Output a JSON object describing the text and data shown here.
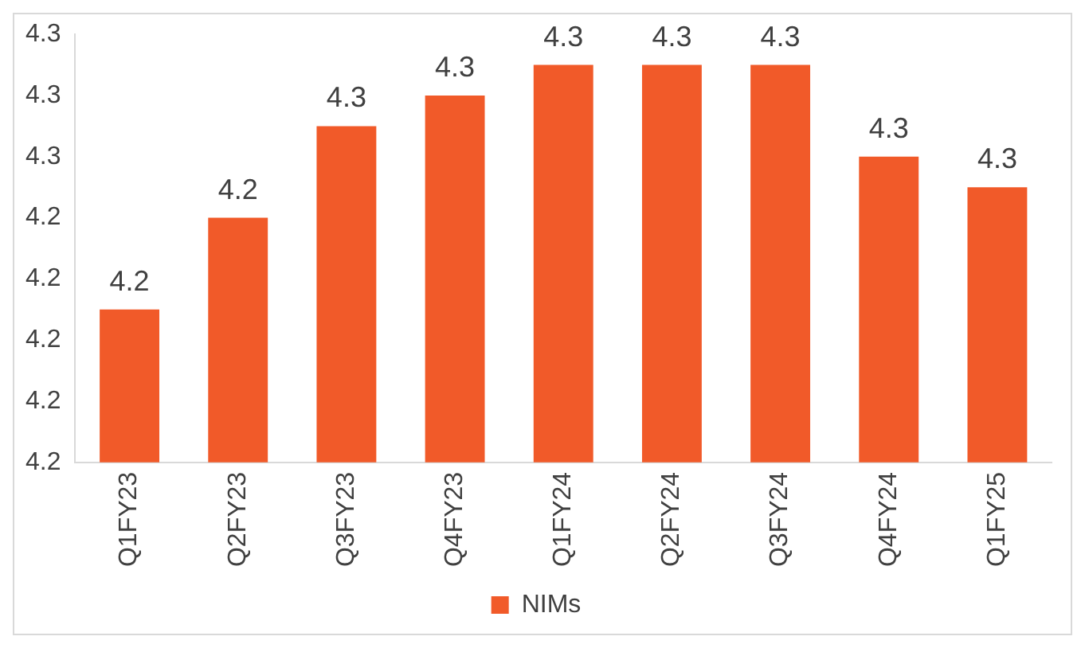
{
  "chart_data": {
    "type": "bar",
    "categories": [
      "Q1FY23",
      "Q2FY23",
      "Q3FY23",
      "Q4FY23",
      "Q1FY24",
      "Q2FY24",
      "Q3FY24",
      "Q4FY24",
      "Q1FY25"
    ],
    "series": [
      {
        "name": "NIMs",
        "color": "#f15a29",
        "values": [
          4.21,
          4.24,
          4.27,
          4.28,
          4.29,
          4.29,
          4.29,
          4.26,
          4.25
        ],
        "value_labels": [
          "4.2",
          "4.2",
          "4.3",
          "4.3",
          "4.3",
          "4.3",
          "4.3",
          "4.3",
          "4.3"
        ]
      }
    ],
    "ylim": [
      4.16,
      4.3
    ],
    "yticks": [
      {
        "value": 4.16,
        "label": "4.2"
      },
      {
        "value": 4.18,
        "label": "4.2"
      },
      {
        "value": 4.2,
        "label": "4.2"
      },
      {
        "value": 4.22,
        "label": "4.2"
      },
      {
        "value": 4.24,
        "label": "4.2"
      },
      {
        "value": 4.26,
        "label": "4.3"
      },
      {
        "value": 4.28,
        "label": "4.3"
      },
      {
        "value": 4.3,
        "label": "4.3"
      }
    ],
    "grid": false,
    "legend": "bottom"
  }
}
